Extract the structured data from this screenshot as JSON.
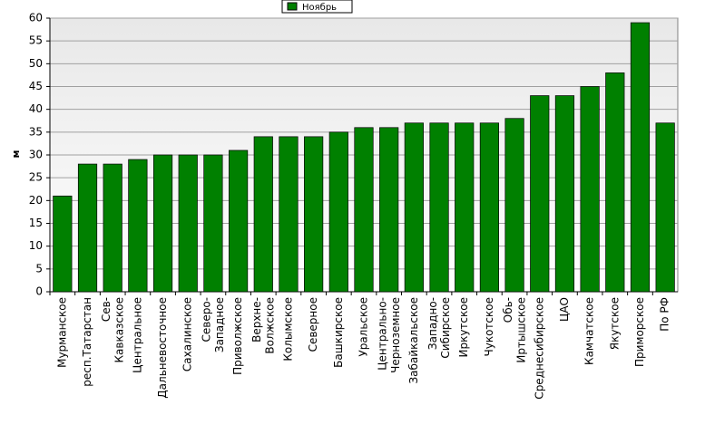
{
  "chart_data": {
    "type": "bar",
    "y_label": "м",
    "legend": "top",
    "categories": [
      "Мурманское",
      "респ.Татарстан",
      "Сев-\nКавказское",
      "Центральное",
      "Дальневосточное",
      "Сахалинское",
      "Северо-\nЗападное",
      "Приволжское",
      "Верхне-\nВолжское",
      "Колымское",
      "Северное",
      "Башкирское",
      "Уральское",
      "Центрально-\nЧерноземное",
      "Забайкальское",
      "Западно-\nСибирское",
      "Иркутское",
      "Чукотское",
      "Обь-\nИртышское",
      "Среднесибирское",
      "ЦАО",
      "Камчатское",
      "Якутское",
      "Приморское",
      "По РФ"
    ],
    "series": [
      {
        "name": "Ноябрь",
        "color": "#008000",
        "values": [
          21,
          28,
          28,
          29,
          30,
          30,
          30,
          31,
          34,
          34,
          34,
          35,
          36,
          36,
          37,
          37,
          37,
          37,
          38,
          43,
          43,
          45,
          48,
          59,
          37
        ]
      }
    ],
    "ylim": [
      0,
      60
    ],
    "yticks": [
      0,
      5,
      10,
      15,
      20,
      25,
      30,
      35,
      40,
      45,
      50,
      55,
      60
    ],
    "grid": true
  }
}
